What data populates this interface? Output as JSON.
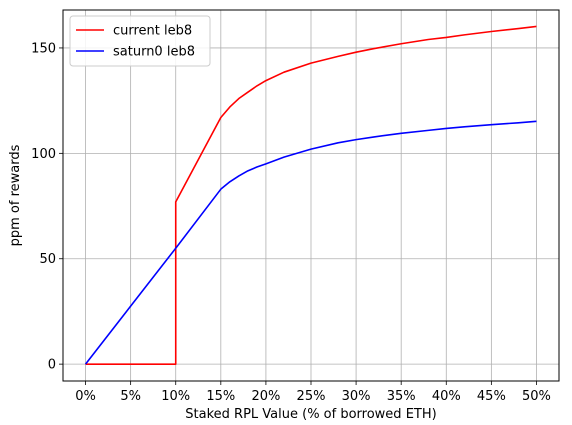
{
  "chart_data": {
    "type": "line",
    "xlabel": "Staked RPL Value (% of borrowed ETH)",
    "ylabel": "ppm of rewards",
    "xlim": [
      -2.5,
      52.5
    ],
    "ylim": [
      -8,
      168
    ],
    "x_ticks": [
      0,
      5,
      10,
      15,
      20,
      25,
      30,
      35,
      40,
      45,
      50
    ],
    "x_tick_labels": [
      "0%",
      "5%",
      "10%",
      "15%",
      "20%",
      "25%",
      "30%",
      "35%",
      "40%",
      "45%",
      "50%"
    ],
    "y_ticks": [
      0,
      50,
      100,
      150
    ],
    "y_tick_labels": [
      "0",
      "50",
      "100",
      "150"
    ],
    "grid": true,
    "legend_placement": "top-left",
    "series": [
      {
        "name": "current leb8",
        "color": "#ff0000",
        "points": [
          [
            0,
            0
          ],
          [
            10,
            0
          ],
          [
            10,
            77
          ],
          [
            11,
            85
          ],
          [
            12,
            93
          ],
          [
            13,
            101
          ],
          [
            14,
            109
          ],
          [
            15,
            117
          ],
          [
            16,
            122
          ],
          [
            17,
            126
          ],
          [
            18,
            129
          ],
          [
            19,
            132
          ],
          [
            20,
            134.5
          ],
          [
            22,
            138.5
          ],
          [
            25,
            142.8
          ],
          [
            28,
            146
          ],
          [
            30,
            148
          ],
          [
            32,
            149.7
          ],
          [
            35,
            152
          ],
          [
            38,
            154
          ],
          [
            40,
            155
          ],
          [
            42,
            156.2
          ],
          [
            45,
            157.8
          ],
          [
            48,
            159.2
          ],
          [
            50,
            160.2
          ]
        ]
      },
      {
        "name": "saturn0 leb8",
        "color": "#0000ff",
        "points": [
          [
            0,
            0
          ],
          [
            5,
            27.5
          ],
          [
            10,
            55
          ],
          [
            15,
            83
          ],
          [
            16,
            86.5
          ],
          [
            17,
            89.3
          ],
          [
            18,
            91.7
          ],
          [
            19,
            93.5
          ],
          [
            20,
            95
          ],
          [
            22,
            98.2
          ],
          [
            25,
            102
          ],
          [
            28,
            105
          ],
          [
            30,
            106.5
          ],
          [
            32,
            107.8
          ],
          [
            35,
            109.5
          ],
          [
            38,
            110.9
          ],
          [
            40,
            111.8
          ],
          [
            42,
            112.6
          ],
          [
            45,
            113.6
          ],
          [
            48,
            114.5
          ],
          [
            50,
            115.2
          ]
        ]
      }
    ]
  }
}
